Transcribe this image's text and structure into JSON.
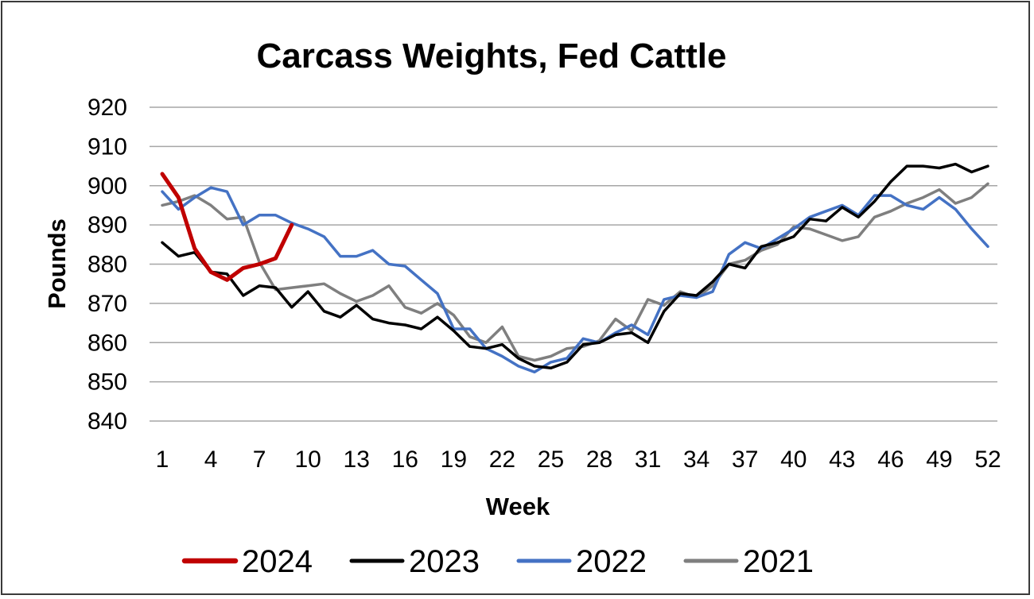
{
  "chart_data": {
    "type": "line",
    "title": "Carcass Weights, Fed Cattle",
    "xlabel": "Week",
    "ylabel": "Pounds",
    "ylim": [
      840,
      920
    ],
    "yticks": [
      840,
      850,
      860,
      870,
      880,
      890,
      900,
      910,
      920
    ],
    "xlim": [
      1,
      52
    ],
    "xticks": [
      1,
      4,
      7,
      10,
      13,
      16,
      19,
      22,
      25,
      28,
      31,
      34,
      37,
      40,
      43,
      46,
      49,
      52
    ],
    "grid": "horizontal",
    "legend": "bottom",
    "series": [
      {
        "name": "2024",
        "color": "#c00000",
        "width": 5,
        "x": [
          1,
          2,
          3,
          4,
          5,
          6,
          7,
          8,
          9
        ],
        "values": [
          903,
          897,
          884,
          878,
          876,
          879,
          880,
          881.5,
          890
        ]
      },
      {
        "name": "2023",
        "color": "#000000",
        "width": 3.5,
        "x": [
          1,
          2,
          3,
          4,
          5,
          6,
          7,
          8,
          9,
          10,
          11,
          12,
          13,
          14,
          15,
          16,
          17,
          18,
          19,
          20,
          21,
          22,
          23,
          24,
          25,
          26,
          27,
          28,
          29,
          30,
          31,
          32,
          33,
          34,
          35,
          36,
          37,
          38,
          39,
          40,
          41,
          42,
          43,
          44,
          45,
          46,
          47,
          48,
          49,
          50,
          51,
          52
        ],
        "values": [
          885.5,
          882,
          883,
          878,
          877.5,
          872,
          874.5,
          874,
          869,
          873,
          868,
          866.5,
          869.5,
          866,
          865,
          864.5,
          863.5,
          866.5,
          863,
          859,
          858.5,
          859.5,
          856,
          854,
          853.5,
          855,
          859.5,
          860,
          862,
          862.5,
          860,
          868,
          872.5,
          872,
          875.5,
          880,
          879,
          884.5,
          885.5,
          887,
          891.5,
          891,
          894.5,
          892,
          896,
          901,
          905,
          905,
          904.5,
          905.5,
          903.5,
          905
        ]
      },
      {
        "name": "2022",
        "color": "#4472c4",
        "width": 3.5,
        "x": [
          1,
          2,
          3,
          4,
          5,
          6,
          7,
          8,
          9,
          10,
          11,
          12,
          13,
          14,
          15,
          16,
          17,
          18,
          19,
          20,
          21,
          22,
          23,
          24,
          25,
          26,
          27,
          28,
          29,
          30,
          31,
          32,
          33,
          34,
          35,
          36,
          37,
          38,
          39,
          40,
          41,
          42,
          43,
          44,
          45,
          46,
          47,
          48,
          49,
          50,
          51,
          52
        ],
        "values": [
          898.5,
          894,
          897,
          899.5,
          898.5,
          890,
          892.5,
          892.5,
          890.5,
          889,
          887,
          882,
          882,
          883.5,
          880,
          879.5,
          876,
          872.5,
          863.5,
          863.5,
          858.5,
          856.5,
          854,
          852.5,
          855,
          856,
          861,
          860,
          862.5,
          864.5,
          862,
          871,
          872,
          871.5,
          873,
          882.5,
          885.5,
          884,
          886.5,
          889,
          892,
          893.5,
          895,
          892.5,
          897.5,
          897.5,
          895,
          894,
          897,
          894,
          889,
          884.5
        ]
      },
      {
        "name": "2021",
        "color": "#7f7f7f",
        "width": 3.5,
        "x": [
          1,
          2,
          3,
          4,
          5,
          6,
          7,
          8,
          9,
          10,
          11,
          12,
          13,
          14,
          15,
          16,
          17,
          18,
          19,
          20,
          21,
          22,
          23,
          24,
          25,
          26,
          27,
          28,
          29,
          30,
          31,
          32,
          33,
          34,
          35,
          36,
          37,
          38,
          39,
          40,
          41,
          42,
          43,
          44,
          45,
          46,
          47,
          48,
          49,
          50,
          51,
          52
        ],
        "values": [
          895,
          896,
          897.5,
          895,
          891.5,
          892,
          880.5,
          873.5,
          874,
          874.5,
          875,
          872.5,
          870.5,
          872,
          874.5,
          869,
          867.5,
          870,
          867,
          861.5,
          860,
          864,
          856.5,
          855.5,
          856.5,
          858.5,
          859,
          860.5,
          866,
          863,
          871,
          869.5,
          873,
          871.5,
          874.5,
          880,
          881,
          883.5,
          885,
          889.5,
          889,
          887.5,
          886,
          887,
          892,
          893.5,
          895.5,
          897,
          899,
          895.5,
          897,
          900.5
        ]
      }
    ]
  }
}
